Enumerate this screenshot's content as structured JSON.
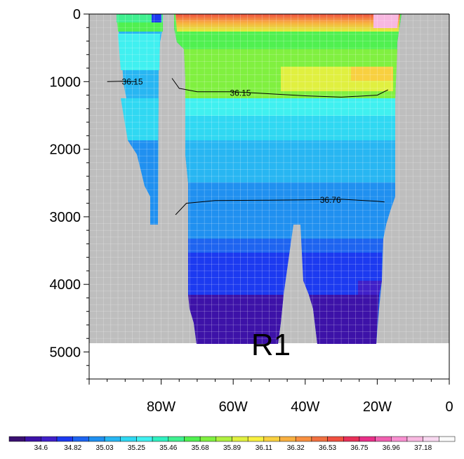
{
  "chart_data": {
    "type": "heatmap",
    "title": "",
    "xlabel": "",
    "ylabel": "",
    "x_unit": "longitude",
    "xlim": [
      -100,
      0
    ],
    "ylim": [
      0,
      5400
    ],
    "y_reversed": true,
    "x_ticks": [
      {
        "value": -80,
        "label": "80W"
      },
      {
        "value": -60,
        "label": "60W"
      },
      {
        "value": -40,
        "label": "40W"
      },
      {
        "value": -20,
        "label": "20W"
      },
      {
        "value": 0,
        "label": "0"
      }
    ],
    "y_ticks": [
      {
        "value": 0,
        "label": "0"
      },
      {
        "value": 1000,
        "label": "1000"
      },
      {
        "value": 2000,
        "label": "2000"
      },
      {
        "value": 3000,
        "label": "3000"
      },
      {
        "value": 4000,
        "label": "4000"
      },
      {
        "value": 5000,
        "label": "5000"
      }
    ],
    "bottom_depth": 4900,
    "land_color": "#bebebe",
    "colorbar": {
      "levels": [
        "34.6",
        "34.82",
        "35.03",
        "35.25",
        "35.46",
        "35.68",
        "35.89",
        "36.11",
        "36.32",
        "36.53",
        "36.75",
        "36.96",
        "37.18"
      ],
      "colors": [
        "#3a1070",
        "#3d12a8",
        "#4020c8",
        "#1c3af0",
        "#1e64f0",
        "#2090f0",
        "#28b6f2",
        "#30d8f2",
        "#40f0f0",
        "#30f0c0",
        "#40f090",
        "#50f050",
        "#80f040",
        "#b0f040",
        "#e0f040",
        "#f8f040",
        "#f8d040",
        "#f8b040",
        "#f89040",
        "#f07040",
        "#f05040",
        "#e83058",
        "#e83088",
        "#f060b0",
        "#f890d0",
        "#f8b8e0",
        "#f8d8f0",
        "#fafafa"
      ]
    },
    "annotation": "R1",
    "contour_lines": [
      {
        "label": "36.15",
        "points": [
          [
            -95,
            1000
          ],
          [
            -91,
            995
          ],
          [
            -87,
            1000
          ]
        ]
      },
      {
        "label": "36.15",
        "points": [
          [
            -77,
            950
          ],
          [
            -75,
            1100
          ],
          [
            -70,
            1150
          ],
          [
            -60,
            1150
          ],
          [
            -50,
            1180
          ],
          [
            -40,
            1210
          ],
          [
            -30,
            1230
          ],
          [
            -20,
            1200
          ],
          [
            -17,
            1120
          ]
        ]
      },
      {
        "label": "36.76",
        "points": [
          [
            -76,
            2970
          ],
          [
            -73,
            2800
          ],
          [
            -65,
            2760
          ],
          [
            -50,
            2755
          ],
          [
            -40,
            2750
          ],
          [
            -30,
            2740
          ],
          [
            -20,
            2770
          ],
          [
            -18,
            2780
          ]
        ]
      }
    ]
  }
}
